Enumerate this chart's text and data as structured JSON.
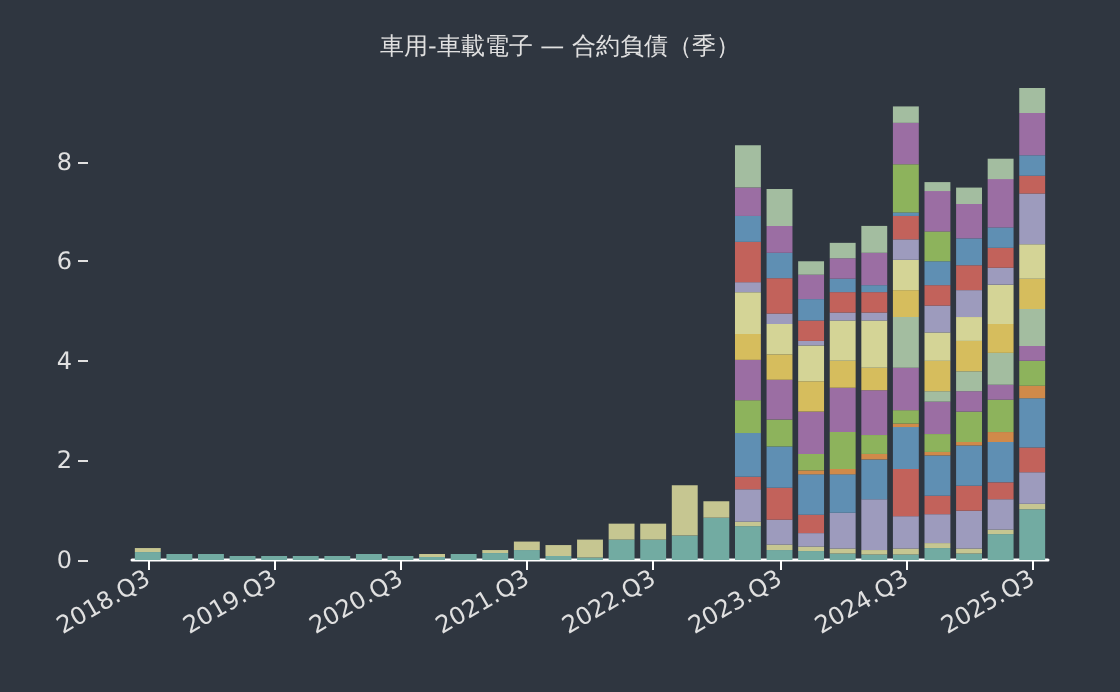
{
  "chart_data": {
    "type": "bar",
    "title": "車用-車載電子 — 合約負債（季）",
    "stacked": true,
    "grid": false,
    "categories": [
      "2018.Q3",
      null,
      null,
      null,
      "2019.Q3",
      null,
      null,
      null,
      "2020.Q3",
      null,
      null,
      null,
      "2021.Q3",
      null,
      null,
      null,
      "2022.Q3",
      null,
      null,
      null,
      "2023.Q3",
      null,
      null,
      null,
      "2024.Q3",
      null,
      null,
      null,
      "2025.Q3"
    ],
    "ylim": [
      0,
      9.48
    ],
    "yticks": [
      0,
      2,
      4,
      6,
      8
    ],
    "series": [
      {
        "color": "#72aba2",
        "values": [
          0.16,
          0.12,
          0.12,
          0.08,
          0.08,
          0.08,
          0.08,
          0.12,
          0.08,
          0.06,
          0.12,
          0.14,
          0.2,
          0.08,
          0.05,
          0.41,
          0.41,
          0.49,
          0.85,
          0.68,
          0.2,
          0.18,
          0.13,
          0.11,
          0.11,
          0.24,
          0.13,
          0.52,
          1.02
        ]
      },
      {
        "color": "#c6c691",
        "values": [
          0.08,
          null,
          null,
          null,
          null,
          null,
          null,
          null,
          null,
          0.06,
          null,
          0.06,
          0.17,
          0.22,
          0.36,
          0.32,
          0.32,
          1.01,
          0.33,
          0.09,
          0.11,
          0.09,
          0.1,
          0.09,
          0.12,
          0.1,
          0.1,
          0.09,
          0.11
        ]
      },
      {
        "color": "#9d9bbd",
        "values": [
          null,
          null,
          null,
          null,
          null,
          null,
          null,
          null,
          null,
          null,
          null,
          null,
          null,
          null,
          null,
          null,
          null,
          null,
          null,
          0.65,
          0.5,
          0.27,
          0.72,
          1.02,
          0.65,
          0.58,
          0.76,
          0.61,
          0.63
        ]
      },
      {
        "color": "#c2625b",
        "values": [
          null,
          null,
          null,
          null,
          null,
          null,
          null,
          null,
          null,
          null,
          null,
          null,
          null,
          null,
          null,
          null,
          null,
          null,
          null,
          0.25,
          0.64,
          0.37,
          null,
          null,
          0.95,
          0.37,
          0.5,
          0.34,
          0.5
        ]
      },
      {
        "color": "#5f8fb3",
        "values": [
          null,
          null,
          null,
          null,
          null,
          null,
          null,
          null,
          null,
          null,
          null,
          null,
          null,
          null,
          null,
          null,
          null,
          null,
          null,
          0.88,
          0.83,
          0.81,
          0.77,
          0.8,
          0.84,
          0.81,
          0.81,
          0.81,
          0.99
        ]
      },
      {
        "color": "#d08a4a",
        "values": [
          null,
          null,
          null,
          null,
          null,
          null,
          null,
          null,
          null,
          null,
          null,
          null,
          null,
          null,
          null,
          null,
          null,
          null,
          null,
          null,
          null,
          0.08,
          0.11,
          0.11,
          0.07,
          0.07,
          0.07,
          0.2,
          0.25
        ]
      },
      {
        "color": "#8db35c",
        "values": [
          null,
          null,
          null,
          null,
          null,
          null,
          null,
          null,
          null,
          null,
          null,
          null,
          null,
          null,
          null,
          null,
          null,
          null,
          null,
          0.66,
          0.54,
          0.33,
          0.74,
          0.38,
          0.27,
          0.36,
          0.61,
          0.65,
          0.5
        ]
      },
      {
        "color": "#9b6ea3",
        "values": [
          null,
          null,
          null,
          null,
          null,
          null,
          null,
          null,
          null,
          null,
          null,
          null,
          null,
          null,
          null,
          null,
          null,
          null,
          null,
          0.81,
          0.8,
          0.85,
          0.89,
          0.9,
          0.85,
          0.65,
          0.41,
          0.3,
          0.3
        ]
      },
      {
        "color": "#a3bda0",
        "values": [
          null,
          null,
          null,
          null,
          null,
          null,
          null,
          null,
          null,
          null,
          null,
          null,
          null,
          null,
          null,
          null,
          null,
          null,
          null,
          null,
          null,
          null,
          null,
          null,
          1.02,
          0.21,
          0.4,
          0.64,
          0.74
        ]
      },
      {
        "color": "#d6bd5d",
        "values": [
          null,
          null,
          null,
          null,
          null,
          null,
          null,
          null,
          null,
          null,
          null,
          null,
          null,
          null,
          null,
          null,
          null,
          null,
          null,
          0.52,
          0.51,
          0.61,
          0.54,
          0.45,
          0.54,
          0.61,
          0.61,
          0.58,
          0.61
        ]
      },
      {
        "color": "#d4d496",
        "values": [
          null,
          null,
          null,
          null,
          null,
          null,
          null,
          null,
          null,
          null,
          null,
          null,
          null,
          null,
          null,
          null,
          null,
          null,
          null,
          0.84,
          0.61,
          0.72,
          0.81,
          0.95,
          0.61,
          0.57,
          0.48,
          0.79,
          0.69
        ]
      },
      {
        "color": "#9d9bbd",
        "values": [
          null,
          null,
          null,
          null,
          null,
          null,
          null,
          null,
          null,
          null,
          null,
          null,
          null,
          null,
          null,
          null,
          null,
          null,
          null,
          0.2,
          0.21,
          0.09,
          0.16,
          0.16,
          0.41,
          0.54,
          0.54,
          0.34,
          1.02
        ]
      },
      {
        "color": "#c2625b",
        "values": [
          null,
          null,
          null,
          null,
          null,
          null,
          null,
          null,
          null,
          null,
          null,
          null,
          null,
          null,
          null,
          null,
          null,
          null,
          null,
          0.81,
          0.71,
          0.41,
          0.41,
          0.41,
          0.47,
          0.41,
          0.5,
          0.4,
          0.36
        ]
      },
      {
        "color": "#5f8fb3",
        "values": [
          null,
          null,
          null,
          null,
          null,
          null,
          null,
          null,
          null,
          null,
          null,
          null,
          null,
          null,
          null,
          null,
          null,
          null,
          null,
          0.52,
          0.51,
          0.43,
          0.27,
          0.14,
          0.07,
          0.48,
          0.54,
          0.41,
          0.41
        ]
      },
      {
        "color": "#8db35c",
        "values": [
          null,
          null,
          null,
          null,
          null,
          null,
          null,
          null,
          null,
          null,
          null,
          null,
          null,
          null,
          null,
          null,
          null,
          null,
          null,
          null,
          null,
          null,
          null,
          null,
          0.97,
          0.6,
          null,
          null,
          null
        ]
      },
      {
        "color": "#9b6ea3",
        "values": [
          null,
          null,
          null,
          null,
          null,
          null,
          null,
          null,
          null,
          null,
          null,
          null,
          null,
          null,
          null,
          null,
          null,
          null,
          null,
          0.57,
          0.54,
          0.49,
          0.41,
          0.65,
          0.83,
          0.81,
          0.69,
          0.97,
          0.85
        ]
      },
      {
        "color": "#a3bda0",
        "values": [
          null,
          null,
          null,
          null,
          null,
          null,
          null,
          null,
          null,
          null,
          null,
          null,
          null,
          null,
          null,
          null,
          null,
          null,
          null,
          0.85,
          0.74,
          0.27,
          0.31,
          0.54,
          0.33,
          0.18,
          0.33,
          0.41,
          0.5
        ]
      }
    ]
  }
}
